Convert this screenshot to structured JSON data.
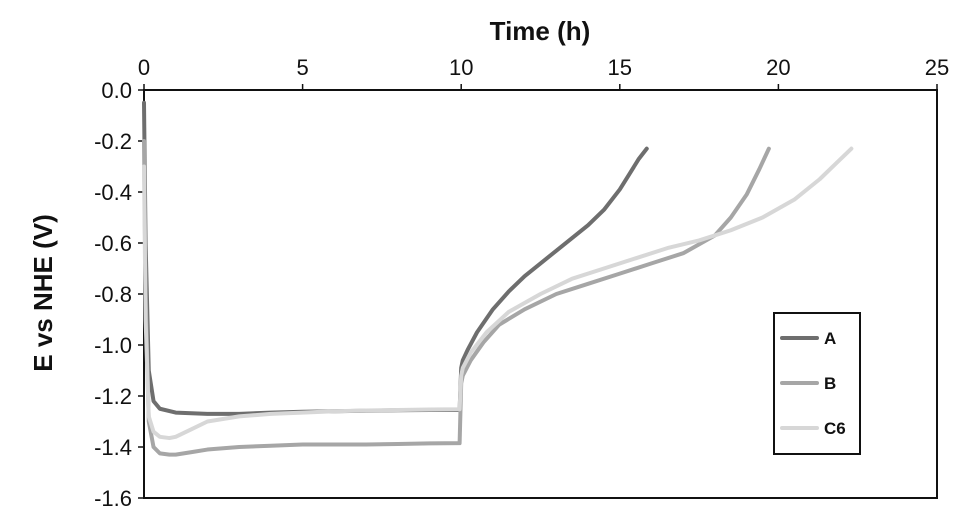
{
  "chart_data": {
    "type": "line",
    "xlabel": "Time (h)",
    "ylabel": "E vs NHE (V)",
    "xlim": [
      0,
      25
    ],
    "ylim": [
      -1.6,
      0.0
    ],
    "x_axis_position": "top",
    "x_ticks": [
      "0",
      "5",
      "10",
      "15",
      "20",
      "25"
    ],
    "y_ticks": [
      "0.0",
      "-0.2",
      "-0.4",
      "-0.6",
      "-0.8",
      "-1.0",
      "-1.2",
      "-1.4",
      "-1.6"
    ],
    "grid": false,
    "legend_position": "bottom-right",
    "series": [
      {
        "name": "A",
        "color": "#6e6e6e",
        "x": [
          0,
          0.05,
          0.15,
          0.3,
          0.5,
          1,
          2,
          3,
          4,
          5,
          6,
          7,
          8,
          9,
          9.95,
          10,
          10.05,
          10.2,
          10.5,
          11,
          11.5,
          12,
          12.5,
          13,
          13.5,
          14,
          14.5,
          15,
          15.3,
          15.6,
          15.85
        ],
        "y": [
          -0.05,
          -0.6,
          -1.1,
          -1.22,
          -1.25,
          -1.265,
          -1.27,
          -1.27,
          -1.265,
          -1.262,
          -1.26,
          -1.258,
          -1.256,
          -1.255,
          -1.255,
          -1.09,
          -1.06,
          -1.02,
          -0.95,
          -0.86,
          -0.79,
          -0.73,
          -0.68,
          -0.63,
          -0.58,
          -0.53,
          -0.47,
          -0.39,
          -0.33,
          -0.27,
          -0.23
        ]
      },
      {
        "name": "B",
        "color": "#a6a6a6",
        "x": [
          0,
          0.05,
          0.15,
          0.3,
          0.5,
          0.8,
          1,
          1.5,
          2,
          3,
          4,
          5,
          6,
          7,
          8,
          9,
          9.95,
          10,
          10.05,
          10.3,
          10.7,
          11.2,
          12,
          13,
          14,
          15,
          16,
          17,
          18,
          18.5,
          19,
          19.4,
          19.7
        ],
        "y": [
          -0.2,
          -0.8,
          -1.3,
          -1.4,
          -1.425,
          -1.43,
          -1.43,
          -1.42,
          -1.41,
          -1.4,
          -1.395,
          -1.39,
          -1.39,
          -1.39,
          -1.388,
          -1.386,
          -1.385,
          -1.15,
          -1.12,
          -1.06,
          -0.99,
          -0.92,
          -0.86,
          -0.8,
          -0.76,
          -0.72,
          -0.68,
          -0.64,
          -0.57,
          -0.5,
          -0.41,
          -0.31,
          -0.23
        ]
      },
      {
        "name": "C6",
        "color": "#d7d7d7",
        "x": [
          0,
          0.05,
          0.15,
          0.3,
          0.5,
          0.8,
          1,
          1.5,
          2,
          3,
          4,
          5,
          6,
          7,
          8,
          9,
          9.95,
          10,
          10.05,
          10.3,
          10.8,
          11.5,
          12.5,
          13.5,
          14.5,
          15.5,
          16.5,
          17.5,
          18.5,
          19.5,
          20.5,
          21.3,
          21.8,
          22.3
        ],
        "y": [
          -0.3,
          -0.9,
          -1.28,
          -1.34,
          -1.36,
          -1.365,
          -1.36,
          -1.33,
          -1.3,
          -1.28,
          -1.27,
          -1.265,
          -1.26,
          -1.257,
          -1.255,
          -1.253,
          -1.252,
          -1.12,
          -1.09,
          -1.03,
          -0.95,
          -0.87,
          -0.8,
          -0.74,
          -0.7,
          -0.66,
          -0.62,
          -0.59,
          -0.55,
          -0.5,
          -0.43,
          -0.35,
          -0.29,
          -0.23
        ]
      }
    ]
  }
}
